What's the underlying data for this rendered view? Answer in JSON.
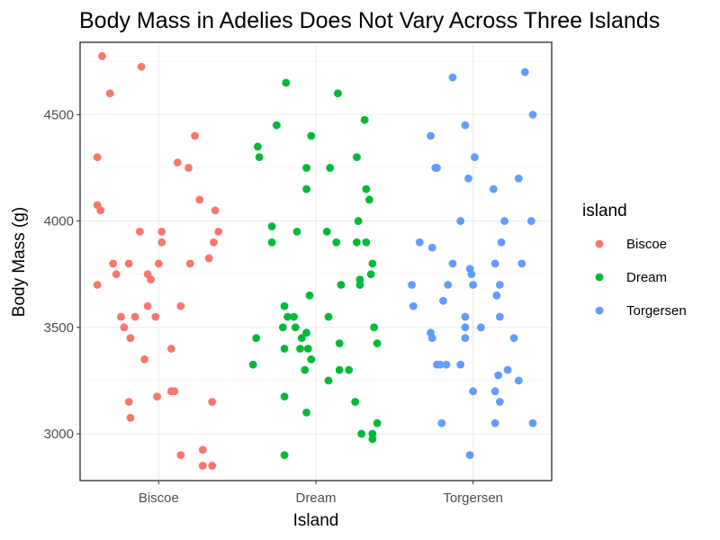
{
  "chart_data": {
    "type": "scatter",
    "title": "Body Mass in Adelies Does Not Vary Across Three Islands",
    "xlabel": "Island",
    "ylabel": "Body Mass (g)",
    "categories": [
      "Biscoe",
      "Dream",
      "Torgersen"
    ],
    "ylim": [
      2780,
      4840
    ],
    "yticks": [
      3000,
      3500,
      4000,
      4500
    ],
    "grid": true,
    "legend": {
      "title": "island",
      "position": "right"
    },
    "colors": {
      "Biscoe": "#F8766D",
      "Dream": "#00BA38",
      "Torgersen": "#619CFF"
    },
    "series": [
      {
        "name": "Biscoe",
        "color": "#F8766D",
        "points": [
          {
            "jitter": -0.36,
            "y": 4775
          },
          {
            "jitter": -0.31,
            "y": 4600
          },
          {
            "jitter": -0.11,
            "y": 4725
          },
          {
            "jitter": -0.39,
            "y": 4300
          },
          {
            "jitter": -0.39,
            "y": 4075
          },
          {
            "jitter": -0.37,
            "y": 4050
          },
          {
            "jitter": 0.23,
            "y": 4400
          },
          {
            "jitter": 0.12,
            "y": 4275
          },
          {
            "jitter": 0.19,
            "y": 4250
          },
          {
            "jitter": 0.26,
            "y": 4100
          },
          {
            "jitter": 0.36,
            "y": 4050
          },
          {
            "jitter": -0.12,
            "y": 3950
          },
          {
            "jitter": 0.02,
            "y": 3950
          },
          {
            "jitter": 0.38,
            "y": 3950
          },
          {
            "jitter": 0.02,
            "y": 3900
          },
          {
            "jitter": 0.35,
            "y": 3900
          },
          {
            "jitter": 0.32,
            "y": 3825
          },
          {
            "jitter": -0.29,
            "y": 3800
          },
          {
            "jitter": -0.19,
            "y": 3800
          },
          {
            "jitter": 0.0,
            "y": 3800
          },
          {
            "jitter": 0.2,
            "y": 3800
          },
          {
            "jitter": -0.27,
            "y": 3750
          },
          {
            "jitter": -0.07,
            "y": 3750
          },
          {
            "jitter": -0.05,
            "y": 3725
          },
          {
            "jitter": -0.39,
            "y": 3700
          },
          {
            "jitter": -0.24,
            "y": 3550
          },
          {
            "jitter": -0.07,
            "y": 3600
          },
          {
            "jitter": 0.14,
            "y": 3600
          },
          {
            "jitter": -0.02,
            "y": 3550
          },
          {
            "jitter": -0.15,
            "y": 3550
          },
          {
            "jitter": -0.22,
            "y": 3500
          },
          {
            "jitter": -0.18,
            "y": 3450
          },
          {
            "jitter": 0.08,
            "y": 3400
          },
          {
            "jitter": -0.09,
            "y": 3350
          },
          {
            "jitter": 0.08,
            "y": 3200
          },
          {
            "jitter": 0.1,
            "y": 3200
          },
          {
            "jitter": -0.19,
            "y": 3150
          },
          {
            "jitter": -0.01,
            "y": 3175
          },
          {
            "jitter": 0.34,
            "y": 3150
          },
          {
            "jitter": -0.18,
            "y": 3075
          },
          {
            "jitter": 0.28,
            "y": 2925
          },
          {
            "jitter": 0.14,
            "y": 2900
          },
          {
            "jitter": 0.28,
            "y": 2850
          },
          {
            "jitter": 0.34,
            "y": 2850
          }
        ]
      },
      {
        "name": "Dream",
        "color": "#00BA38",
        "points": [
          {
            "jitter": -0.19,
            "y": 4650
          },
          {
            "jitter": 0.14,
            "y": 4600
          },
          {
            "jitter": -0.25,
            "y": 4450
          },
          {
            "jitter": 0.31,
            "y": 4475
          },
          {
            "jitter": -0.36,
            "y": 4300
          },
          {
            "jitter": -0.37,
            "y": 4350
          },
          {
            "jitter": -0.03,
            "y": 4400
          },
          {
            "jitter": 0.26,
            "y": 4300
          },
          {
            "jitter": -0.06,
            "y": 4250
          },
          {
            "jitter": 0.09,
            "y": 4250
          },
          {
            "jitter": 0.32,
            "y": 4150
          },
          {
            "jitter": -0.06,
            "y": 4150
          },
          {
            "jitter": 0.34,
            "y": 4100
          },
          {
            "jitter": 0.27,
            "y": 4000
          },
          {
            "jitter": -0.28,
            "y": 3975
          },
          {
            "jitter": -0.12,
            "y": 3950
          },
          {
            "jitter": 0.07,
            "y": 3950
          },
          {
            "jitter": -0.28,
            "y": 3900
          },
          {
            "jitter": 0.13,
            "y": 3900
          },
          {
            "jitter": 0.26,
            "y": 3900
          },
          {
            "jitter": 0.32,
            "y": 3900
          },
          {
            "jitter": 0.36,
            "y": 3800
          },
          {
            "jitter": 0.35,
            "y": 3750
          },
          {
            "jitter": 0.28,
            "y": 3725
          },
          {
            "jitter": 0.28,
            "y": 3700
          },
          {
            "jitter": 0.16,
            "y": 3700
          },
          {
            "jitter": -0.04,
            "y": 3650
          },
          {
            "jitter": -0.2,
            "y": 3600
          },
          {
            "jitter": -0.18,
            "y": 3550
          },
          {
            "jitter": -0.14,
            "y": 3550
          },
          {
            "jitter": 0.08,
            "y": 3550
          },
          {
            "jitter": -0.21,
            "y": 3500
          },
          {
            "jitter": -0.13,
            "y": 3500
          },
          {
            "jitter": 0.37,
            "y": 3500
          },
          {
            "jitter": -0.06,
            "y": 3475
          },
          {
            "jitter": -0.09,
            "y": 3450
          },
          {
            "jitter": -0.38,
            "y": 3450
          },
          {
            "jitter": 0.15,
            "y": 3425
          },
          {
            "jitter": 0.39,
            "y": 3425
          },
          {
            "jitter": -0.1,
            "y": 3400
          },
          {
            "jitter": -0.05,
            "y": 3400
          },
          {
            "jitter": -0.2,
            "y": 3400
          },
          {
            "jitter": -0.03,
            "y": 3350
          },
          {
            "jitter": -0.4,
            "y": 3325
          },
          {
            "jitter": -0.07,
            "y": 3300
          },
          {
            "jitter": 0.15,
            "y": 3300
          },
          {
            "jitter": 0.21,
            "y": 3300
          },
          {
            "jitter": 0.08,
            "y": 3250
          },
          {
            "jitter": -0.2,
            "y": 3175
          },
          {
            "jitter": 0.25,
            "y": 3150
          },
          {
            "jitter": -0.06,
            "y": 3100
          },
          {
            "jitter": 0.39,
            "y": 3050
          },
          {
            "jitter": 0.29,
            "y": 3000
          },
          {
            "jitter": 0.36,
            "y": 3000
          },
          {
            "jitter": 0.36,
            "y": 2975
          },
          {
            "jitter": -0.2,
            "y": 2900
          }
        ]
      },
      {
        "name": "Torgersen",
        "color": "#619CFF",
        "points": [
          {
            "jitter": 0.33,
            "y": 4700
          },
          {
            "jitter": -0.13,
            "y": 4675
          },
          {
            "jitter": 0.38,
            "y": 4500
          },
          {
            "jitter": -0.27,
            "y": 4400
          },
          {
            "jitter": -0.05,
            "y": 4450
          },
          {
            "jitter": -0.24,
            "y": 4250
          },
          {
            "jitter": -0.23,
            "y": 4250
          },
          {
            "jitter": 0.01,
            "y": 4300
          },
          {
            "jitter": 0.29,
            "y": 4200
          },
          {
            "jitter": -0.03,
            "y": 4200
          },
          {
            "jitter": 0.13,
            "y": 4150
          },
          {
            "jitter": -0.08,
            "y": 4000
          },
          {
            "jitter": 0.2,
            "y": 4000
          },
          {
            "jitter": 0.37,
            "y": 4000
          },
          {
            "jitter": 0.18,
            "y": 3900
          },
          {
            "jitter": -0.34,
            "y": 3900
          },
          {
            "jitter": -0.26,
            "y": 3875
          },
          {
            "jitter": -0.13,
            "y": 3800
          },
          {
            "jitter": 0.14,
            "y": 3800
          },
          {
            "jitter": 0.31,
            "y": 3800
          },
          {
            "jitter": -0.02,
            "y": 3775
          },
          {
            "jitter": -0.01,
            "y": 3750
          },
          {
            "jitter": -0.16,
            "y": 3700
          },
          {
            "jitter": 0.0,
            "y": 3700
          },
          {
            "jitter": 0.17,
            "y": 3700
          },
          {
            "jitter": -0.39,
            "y": 3700
          },
          {
            "jitter": 0.15,
            "y": 3650
          },
          {
            "jitter": -0.19,
            "y": 3625
          },
          {
            "jitter": -0.38,
            "y": 3600
          },
          {
            "jitter": -0.05,
            "y": 3550
          },
          {
            "jitter": 0.17,
            "y": 3550
          },
          {
            "jitter": -0.27,
            "y": 3475
          },
          {
            "jitter": -0.26,
            "y": 3450
          },
          {
            "jitter": 0.26,
            "y": 3450
          },
          {
            "jitter": -0.05,
            "y": 3500
          },
          {
            "jitter": 0.05,
            "y": 3500
          },
          {
            "jitter": -0.05,
            "y": 3450
          },
          {
            "jitter": -0.21,
            "y": 3325
          },
          {
            "jitter": -0.17,
            "y": 3325
          },
          {
            "jitter": -0.08,
            "y": 3325
          },
          {
            "jitter": -0.23,
            "y": 3325
          },
          {
            "jitter": 0.22,
            "y": 3300
          },
          {
            "jitter": 0.16,
            "y": 3275
          },
          {
            "jitter": 0.29,
            "y": 3250
          },
          {
            "jitter": 0.14,
            "y": 3200
          },
          {
            "jitter": 0.0,
            "y": 3200
          },
          {
            "jitter": 0.17,
            "y": 3150
          },
          {
            "jitter": -0.2,
            "y": 3050
          },
          {
            "jitter": 0.14,
            "y": 3050
          },
          {
            "jitter": 0.38,
            "y": 3050
          },
          {
            "jitter": -0.02,
            "y": 2900
          }
        ]
      }
    ]
  }
}
